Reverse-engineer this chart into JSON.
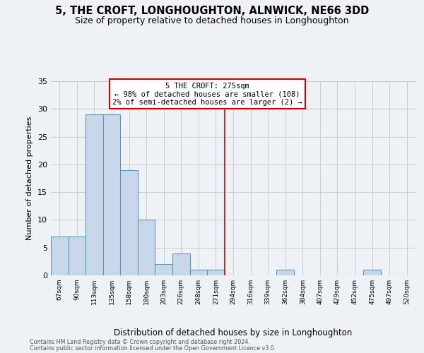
{
  "title": "5, THE CROFT, LONGHOUGHTON, ALNWICK, NE66 3DD",
  "subtitle": "Size of property relative to detached houses in Longhoughton",
  "xlabel": "Distribution of detached houses by size in Longhoughton",
  "ylabel": "Number of detached properties",
  "footnote1": "Contains HM Land Registry data © Crown copyright and database right 2024.",
  "footnote2": "Contains public sector information licensed under the Open Government Licence v3.0.",
  "bin_labels": [
    "67sqm",
    "90sqm",
    "113sqm",
    "135sqm",
    "158sqm",
    "180sqm",
    "203sqm",
    "226sqm",
    "248sqm",
    "271sqm",
    "294sqm",
    "316sqm",
    "339sqm",
    "362sqm",
    "384sqm",
    "407sqm",
    "429sqm",
    "452sqm",
    "475sqm",
    "497sqm",
    "520sqm"
  ],
  "bar_values": [
    7,
    7,
    29,
    29,
    19,
    10,
    2,
    4,
    1,
    1,
    0,
    0,
    0,
    1,
    0,
    0,
    0,
    0,
    1,
    0,
    0
  ],
  "bar_color": "#c8d8ea",
  "bar_edge_color": "#5a9ab5",
  "grid_color": "#cccccc",
  "vline_x": 9.5,
  "vline_color": "#cc0000",
  "annotation_text": "5 THE CROFT: 275sqm\n← 98% of detached houses are smaller (108)\n2% of semi-detached houses are larger (2) →",
  "annotation_box_color": "#cc0000",
  "ylim": [
    0,
    35
  ],
  "yticks": [
    0,
    5,
    10,
    15,
    20,
    25,
    30,
    35
  ],
  "bg_color": "#eef2f7",
  "title_fontsize": 10.5,
  "subtitle_fontsize": 9
}
